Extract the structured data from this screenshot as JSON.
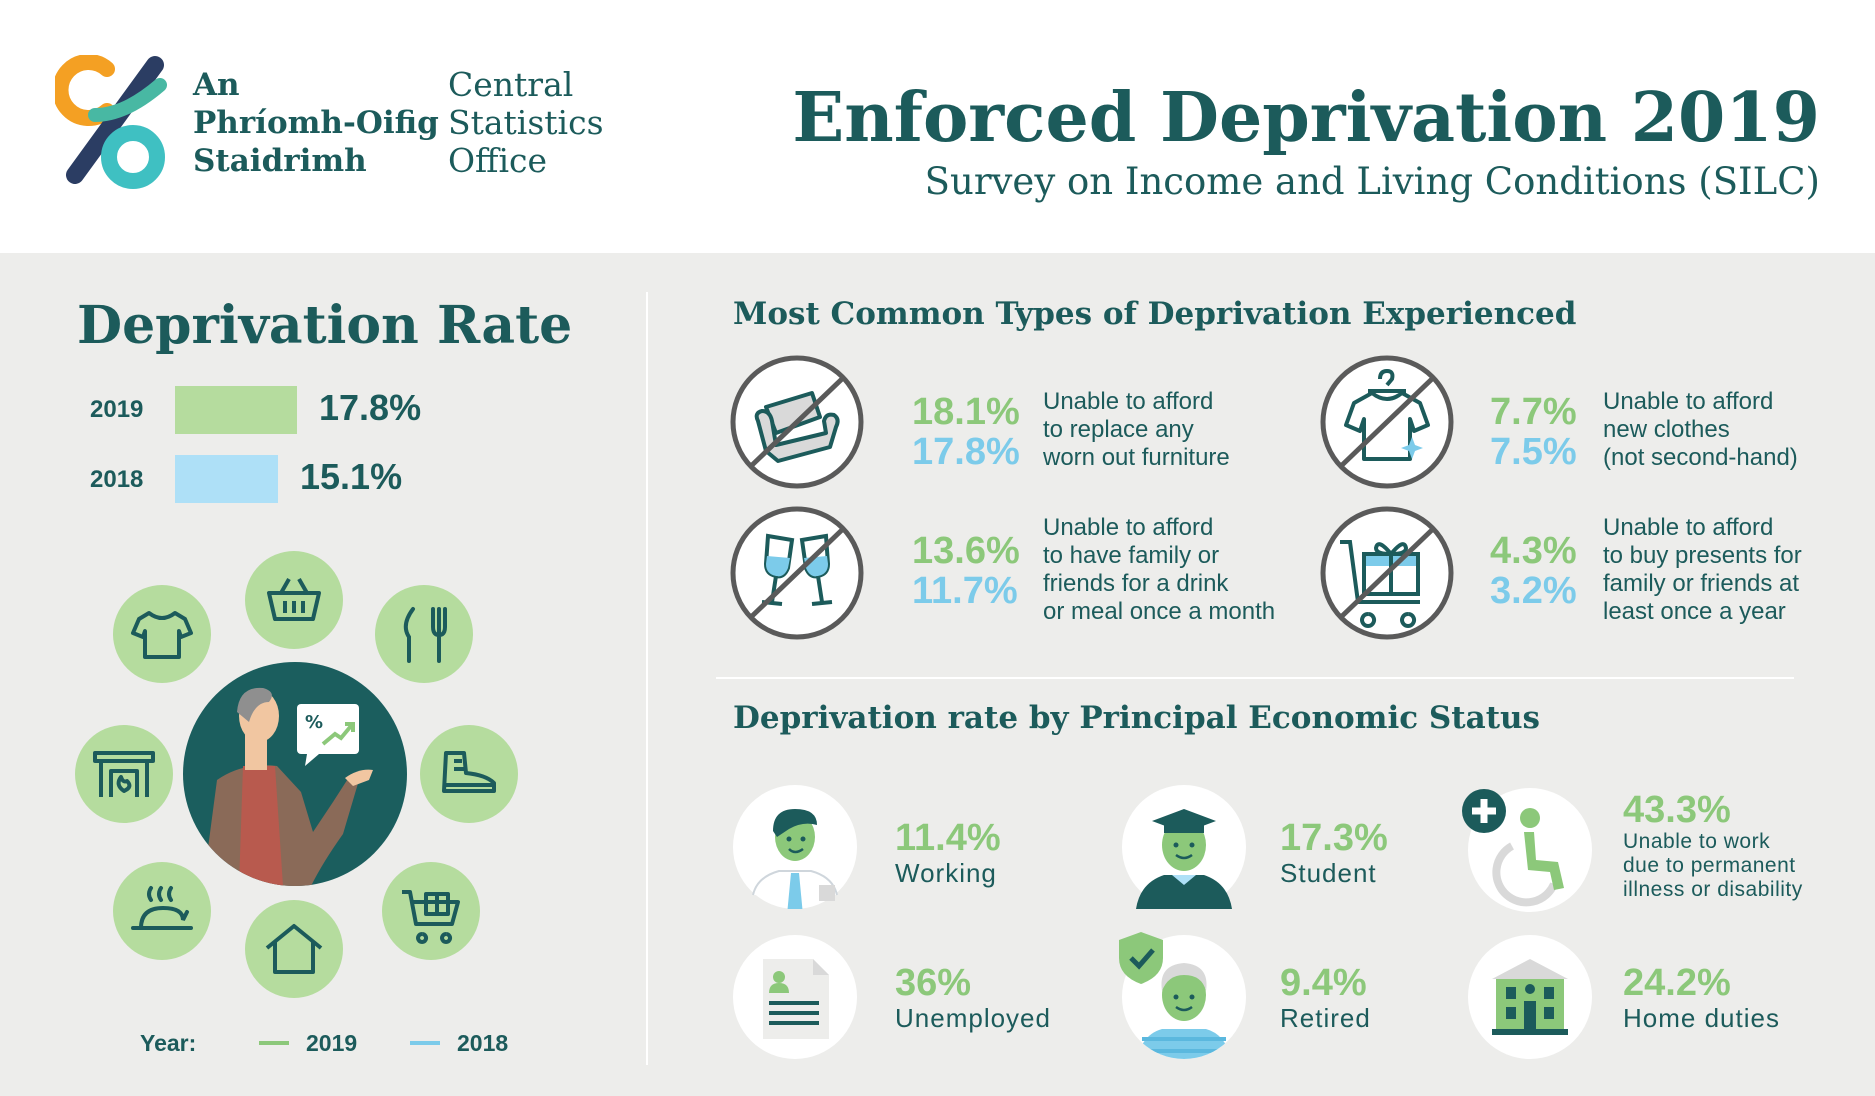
{
  "header": {
    "logo_irish": [
      "An",
      "Phríomh-Oifig",
      "Staidrimh"
    ],
    "logo_english": [
      "Central",
      "Statistics",
      "Office"
    ],
    "title": "Enforced Deprivation 2019",
    "subtitle": "Survey on Income and Living Conditions (SILC)"
  },
  "deprivation_rate": {
    "title": "Deprivation Rate",
    "bars": [
      {
        "year": "2019",
        "value": 17.8,
        "label": "17.8%",
        "color": "#b5dc9e"
      },
      {
        "year": "2018",
        "value": 15.1,
        "label": "15.1%",
        "color": "#aee0f7"
      }
    ],
    "icon_ring": [
      "tshirt-icon",
      "basket-icon",
      "cutlery-icon",
      "shoe-icon",
      "trolley-gift-icon",
      "house-icon",
      "roast-chicken-icon",
      "fireplace-icon"
    ]
  },
  "legend": {
    "title": "Year:",
    "items": [
      {
        "label": "2019",
        "color": "#8cc87a"
      },
      {
        "label": "2018",
        "color": "#7ccbea"
      }
    ]
  },
  "types": {
    "title": "Most Common Types of Deprivation Experienced",
    "items": [
      {
        "icon": "sofa-icon",
        "v2019": "18.1%",
        "v2018": "17.8%",
        "desc": [
          "Unable to afford",
          "to replace any",
          "worn out furniture"
        ]
      },
      {
        "icon": "tshirt-hanger-icon",
        "v2019": "7.7%",
        "v2018": "7.5%",
        "desc": [
          "Unable to afford",
          "new clothes",
          "(not second-hand)"
        ]
      },
      {
        "icon": "wine-glasses-icon",
        "v2019": "13.6%",
        "v2018": "11.7%",
        "desc": [
          "Unable to afford",
          "to have family or",
          "friends for a drink",
          "or meal once a month"
        ]
      },
      {
        "icon": "gift-trolley-icon",
        "v2019": "4.3%",
        "v2018": "3.2%",
        "desc": [
          "Unable to afford",
          "to buy presents for",
          "family or friends at",
          "least once a year"
        ]
      }
    ]
  },
  "status": {
    "title": "Deprivation rate by Principal Economic Status",
    "items": [
      {
        "icon": "worker-icon",
        "value": "11.4%",
        "label": [
          "Working"
        ]
      },
      {
        "icon": "student-icon",
        "value": "17.3%",
        "label": [
          "Student"
        ]
      },
      {
        "icon": "wheelchair-icon",
        "value": "43.3%",
        "label": [
          "Unable to work",
          "due to permanent",
          "illness or disability"
        ]
      },
      {
        "icon": "document-icon",
        "value": "36%",
        "label": [
          "Unemployed"
        ]
      },
      {
        "icon": "retired-person-icon",
        "value": "9.4%",
        "label": [
          "Retired"
        ]
      },
      {
        "icon": "home-building-icon",
        "value": "24.2%",
        "label": [
          "Home duties"
        ]
      }
    ]
  }
}
